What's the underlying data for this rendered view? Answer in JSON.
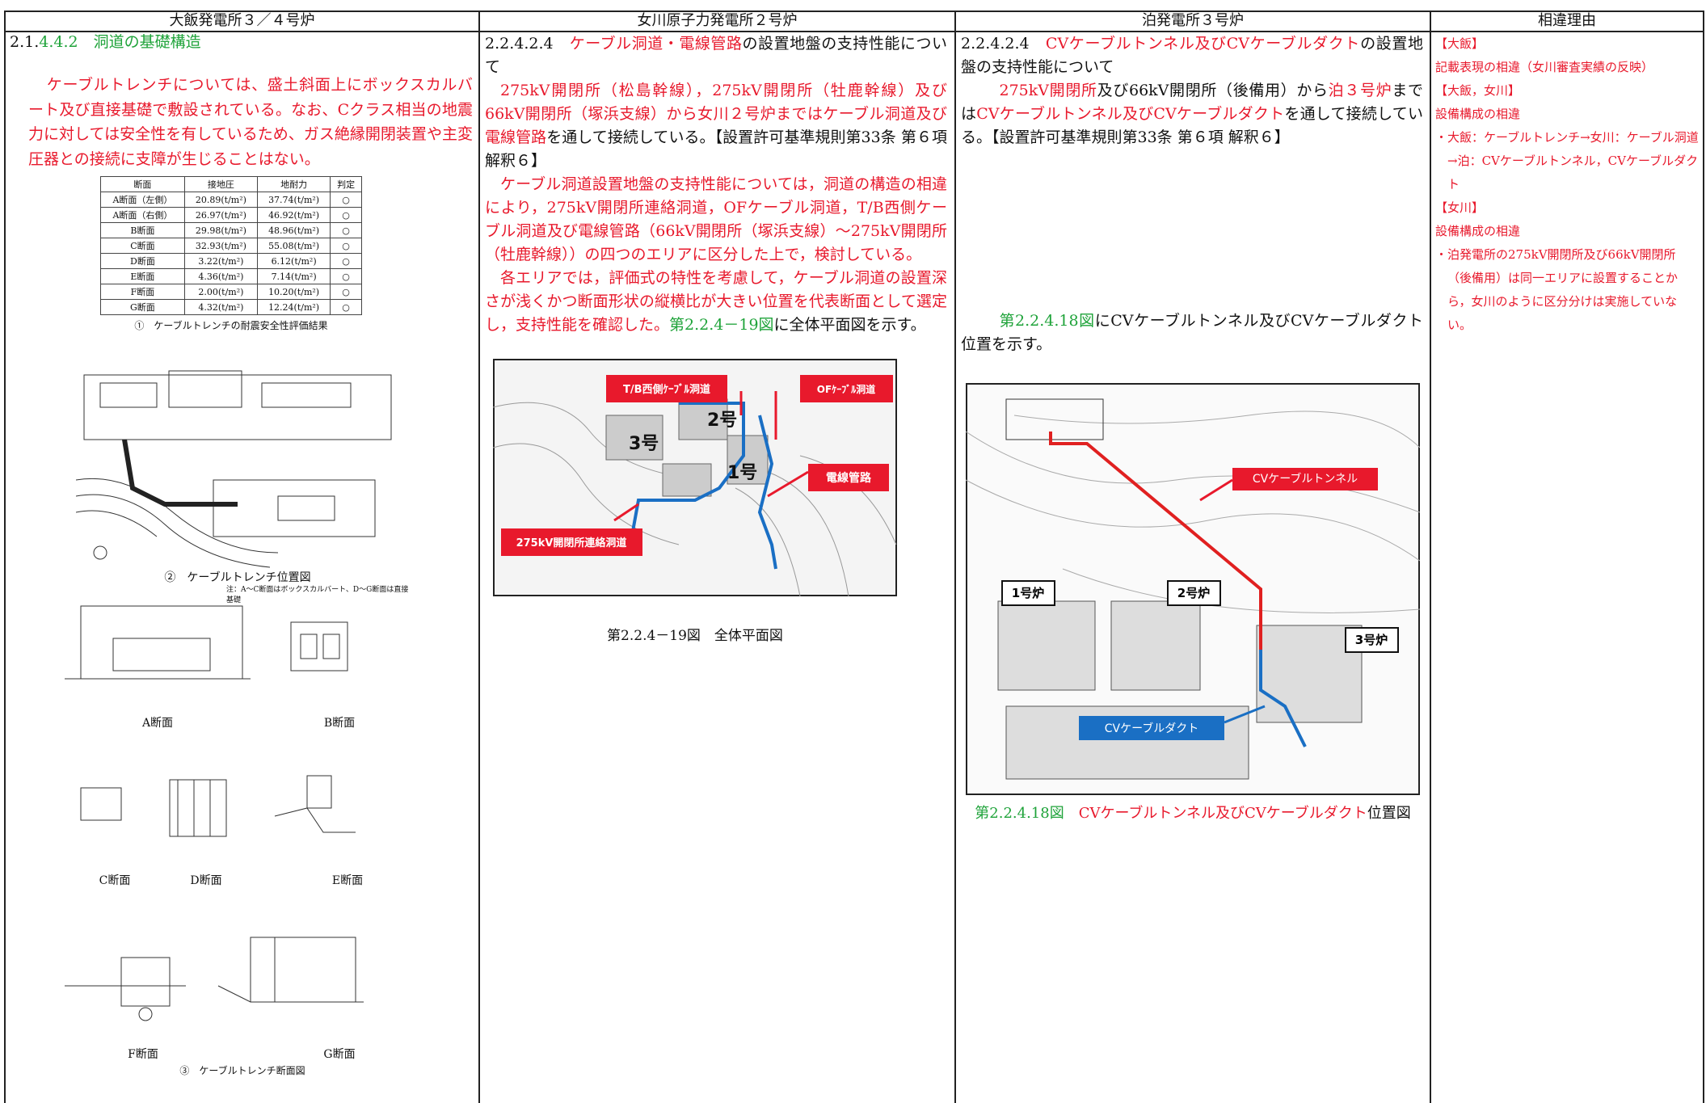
{
  "table_header": [
    "大飯発電所３／４号炉",
    "女川原子力発電所２号炉",
    "泊発電所３号炉",
    "相違理由"
  ],
  "col1": {
    "heading": [
      {
        "text": "2.1."
      },
      {
        "text": "4.4.2　洞道の基礎構造",
        "color": "#1fa33a"
      }
    ],
    "paragraph": "ケーブルトレンチについては、盛土斜面上にボックスカルバート及び直接基礎で敷設されている。なお、Cクラス相当の地震力に対しては安全性を有しているため、ガス絶縁開閉装置や主変圧器との接続に支障が生じることはない。",
    "paragraph_color": "#e8192c",
    "eval_table": {
      "columns": [
        "断面",
        "接地圧",
        "地耐力",
        "判定"
      ],
      "rows": [
        [
          "A断面（左側）",
          "20.89(t/m²)",
          "37.74(t/m²)",
          "○"
        ],
        [
          "A断面（右側）",
          "26.97(t/m²)",
          "46.92(t/m²)",
          "○"
        ],
        [
          "B断面",
          "29.98(t/m²)",
          "48.96(t/m²)",
          "○"
        ],
        [
          "C断面",
          "32.93(t/m²)",
          "55.08(t/m²)",
          "○"
        ],
        [
          "D断面",
          "3.22(t/m²)",
          "6.12(t/m²)",
          "○"
        ],
        [
          "E断面",
          "4.36(t/m²)",
          "7.14(t/m²)",
          "○"
        ],
        [
          "F断面",
          "2.00(t/m²)",
          "10.20(t/m²)",
          "○"
        ],
        [
          "G断面",
          "4.32(t/m²)",
          "12.24(t/m²)",
          "○"
        ]
      ],
      "caption": "①　ケーブルトレンチの耐震安全性評価結果"
    },
    "location_caption": "②　ケーブルトレンチ位置図",
    "location_note": "注：A～C断面はボックスカルバート、D～G断面は直接基礎",
    "sections": [
      "A断面",
      "B断面",
      "C断面",
      "D断面",
      "E断面",
      "F断面",
      "G断面"
    ],
    "sections_caption": "③　ケーブルトレンチ断面図"
  },
  "col2": {
    "heading": [
      {
        "text": "2.2.4.2.4　"
      },
      {
        "text": "ケーブル洞道・電線管路",
        "color": "#e8192c"
      },
      {
        "text": "の設置地盤の支持性能について"
      }
    ],
    "paragraphs": [
      [
        {
          "text": "275kV開閉所（松島幹線），275kV開閉所（牡鹿幹線）",
          "color": "#e8192c"
        },
        {
          "text": "及び66kV開閉所（塚浜支線）から女川２号炉まではケーブル洞道及び電線管路",
          "color": "#e8192c"
        },
        {
          "text": "を通して接続している。【設置許可基準規則第33条 第６項 解釈６】"
        }
      ],
      [
        {
          "text": "ケーブル洞道設置地盤の支持性能については，洞道の構造の相違により，275kV開閉所連絡洞道，OFケーブル洞道，T/B西側ケーブル洞道及び電線管路（66kV開閉所（塚浜支線）～275kV開閉所（牡鹿幹線））の四つのエリアに区分した上で，検討している。",
          "color": "#e8192c"
        }
      ],
      [
        {
          "text": "各エリアでは，評価式の特性を考慮して，ケーブル洞道の設置深さが浅くかつ断面形状の縦横比が大きい位置を代表断面として選定し，支持性能を確認した。",
          "color": "#e8192c"
        },
        {
          "text": "第2.2.4－19図",
          "color": "#1fa33a"
        },
        {
          "text": "に全体平面図を示す。"
        }
      ]
    ],
    "map_labels": {
      "tb": "T/B西側ｹｰﾌﾞﾙ洞道",
      "of": "OFｹｰﾌﾞﾙ洞道",
      "conduit": "電線管路",
      "link": "275kV開閉所連絡洞道",
      "u3": "3号",
      "u2": "2号",
      "u1": "1号"
    },
    "caption": "第2.2.4－19図　全体平面図"
  },
  "col3": {
    "heading": [
      {
        "text": "2.2.4.2.4　"
      },
      {
        "text": "CVケーブルトンネル及びCVケーブルダクト",
        "color": "#e8192c"
      },
      {
        "text": "の設置地盤の支持性能について"
      }
    ],
    "paragraph1": [
      {
        "text": "275kV開閉所",
        "color": "#e8192c"
      },
      {
        "text": "及び66kV開閉所（後備用）から"
      },
      {
        "text": "泊３号炉",
        "color": "#e8192c"
      },
      {
        "text": "までは"
      },
      {
        "text": "CVケーブルトンネル及びCVケーブルダクト",
        "color": "#e8192c"
      },
      {
        "text": "を通して接続している。【設置許可基準規則第33条 第６項 解釈６】"
      }
    ],
    "paragraph2": [
      {
        "text": "第2.2.4.18図",
        "color": "#1fa33a"
      },
      {
        "text": "にCVケーブルトンネル及びCVケーブルダクト位置を示す。"
      }
    ],
    "map_labels": {
      "tunnel": "CVケーブルトンネル",
      "r1": "1号炉",
      "r2": "2号炉",
      "r3": "3号炉",
      "duct": "CVケーブルダクト"
    },
    "caption": [
      {
        "text": "第2.2.4.18図　",
        "color": "#1fa33a"
      },
      {
        "text": "CVケーブルトンネル及びCVケーブルダクト",
        "color": "#e8192c"
      },
      {
        "text": "位置図"
      }
    ]
  },
  "col4": {
    "color": "#e8192c",
    "lines": [
      "【大飯】",
      "記載表現の相違（女川審査実績の反映）",
      "【大飯，女川】",
      "設備構成の相違",
      "・大飯：ケーブルトレンチ→女川：ケーブル洞道→泊：CVケーブルトンネル，CVケーブルダクト",
      "【女川】",
      "設備構成の相違",
      "・泊発電所の275kV開閉所及び66kV開閉所（後備用）は同一エリアに設置することから，女川のように区分分けは実施していない。"
    ]
  }
}
